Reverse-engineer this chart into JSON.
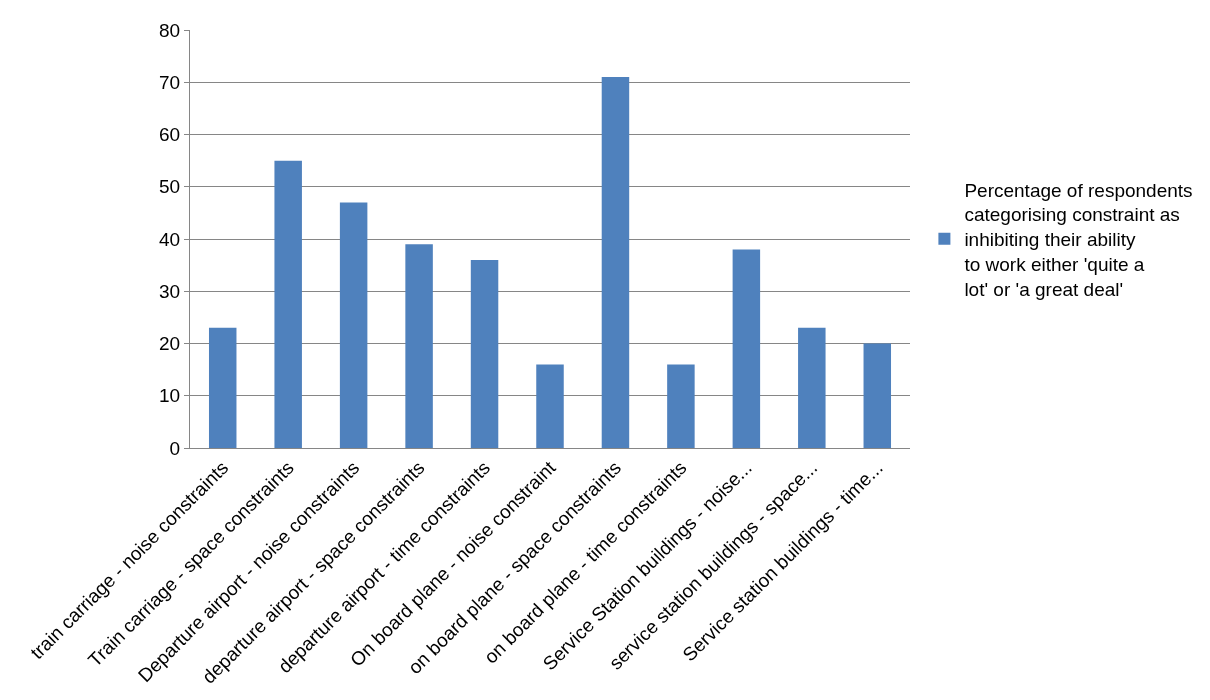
{
  "chart_data": {
    "type": "bar",
    "categories": [
      "train carriage - noise constraints",
      "Train carriage - space constraints",
      "Departure airport - noise constraints",
      "departure airport - space constraints",
      "departure airport - time constraints",
      "On board plane - noise constraint",
      "on board plane - space constraints",
      "on board plane - time constraints",
      "Service Station buildings - noise...",
      "service station buildings - space...",
      "Service station buildings - time..."
    ],
    "series": [
      {
        "name": "Percentage of respondents categorising constraint as inhibiting their ability to work either 'quite a lot' or 'a great deal'",
        "color": "#4f81bd",
        "values": [
          23,
          55,
          47,
          39,
          36,
          16,
          71,
          16,
          38,
          23,
          20
        ]
      }
    ],
    "ylim": [
      0,
      80
    ],
    "yticks": [
      0,
      10,
      20,
      30,
      40,
      50,
      60,
      70,
      80
    ],
    "grid": "y",
    "legend": "right"
  }
}
